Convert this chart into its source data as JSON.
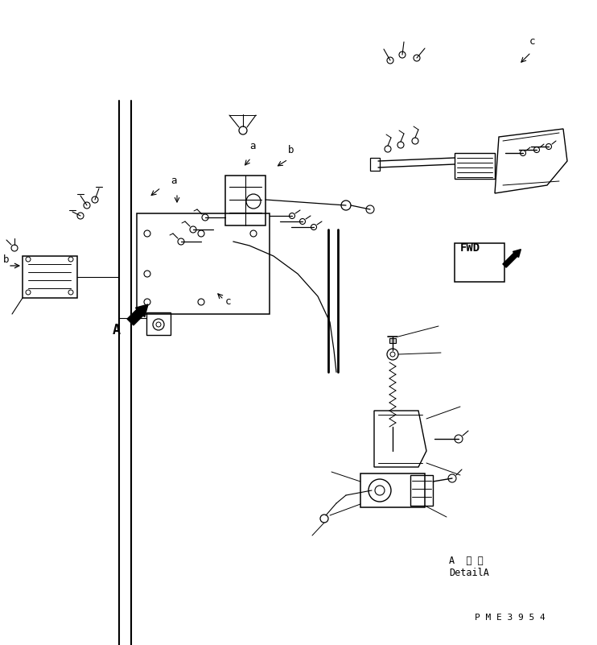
{
  "bg_color": "#ffffff",
  "line_color": "#000000",
  "detail_label_line1": "A  詳 細",
  "detail_label_line2": "DetailA",
  "part_code": "P M E 3 9 5 4",
  "label_a1": "a",
  "label_a2": "a",
  "label_b1": "b",
  "label_b2": "b",
  "label_c1": "c",
  "label_c2": "c",
  "label_A": "A",
  "label_fwd": "FWD"
}
